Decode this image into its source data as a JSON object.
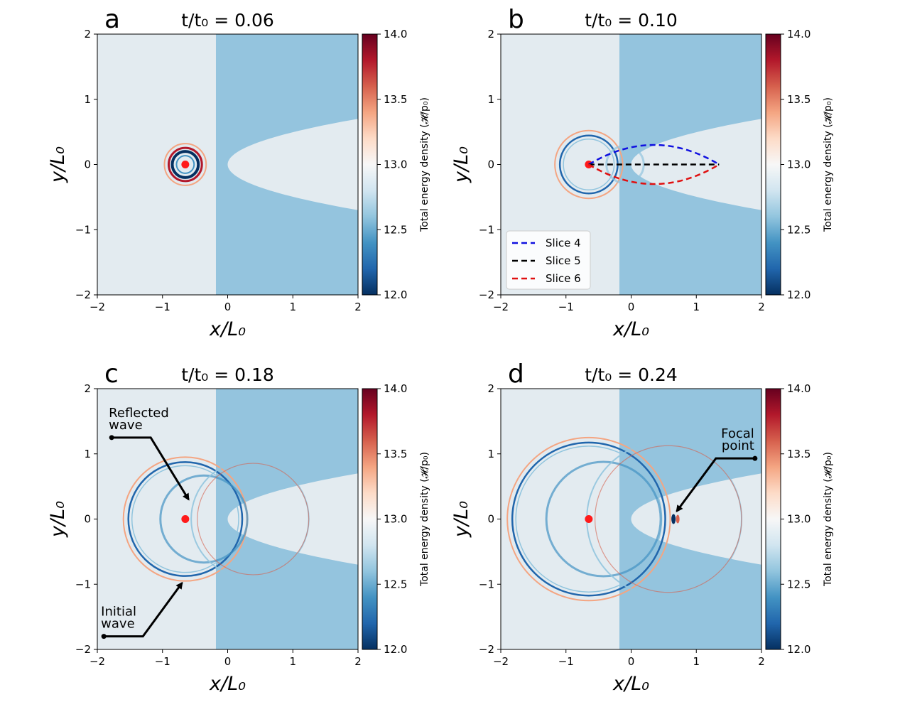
{
  "colors": {
    "light_medium": "#e3ebf0",
    "dense_medium": "#94c4de",
    "source": "#ff1a1a",
    "slice4": "#1010e0",
    "slice5": "#000000",
    "slice6": "#e01010",
    "colormap": [
      "#053061",
      "#2166ac",
      "#4393c3",
      "#92c5de",
      "#d1e5f0",
      "#f7f7f7",
      "#fddbc7",
      "#f4a582",
      "#d6604d",
      "#b2182b",
      "#67001f"
    ]
  },
  "axes": {
    "xlabel": "x/L₀",
    "ylabel": "y/L₀",
    "xlim": [
      -2,
      2
    ],
    "ylim": [
      -2,
      2
    ],
    "x_ticks": [
      "−2",
      "−1",
      "0",
      "1",
      "2"
    ],
    "y_ticks": [
      "−2",
      "−1",
      "0",
      "1",
      "2"
    ]
  },
  "colorbar": {
    "label": "Total energy density (𝓗/p₀)",
    "range": [
      12.0,
      14.0
    ],
    "ticks": [
      "12.0",
      "12.5",
      "13.0",
      "13.5",
      "14.0"
    ]
  },
  "chart_data": [
    {
      "type": "heatmap",
      "panel": "a",
      "title": "t/t₀ = 0.06",
      "source_position": [
        -0.65,
        0
      ],
      "interface_x": -0.18,
      "wavefront_radius": 0.32
    },
    {
      "type": "heatmap",
      "panel": "b",
      "title": "t/t₀ = 0.10",
      "source_position": [
        -0.65,
        0
      ],
      "interface_x": -0.18,
      "wavefront_radius": 0.52,
      "slices": [
        {
          "name": "Slice 4",
          "x": [
            -0.65,
            0.35,
            1.35
          ],
          "y": [
            0,
            0.3,
            0
          ]
        },
        {
          "name": "Slice 5",
          "x": [
            -0.65,
            0.35,
            1.35
          ],
          "y": [
            0,
            0,
            0
          ]
        },
        {
          "name": "Slice 6",
          "x": [
            -0.65,
            0.35,
            1.35
          ],
          "y": [
            0,
            -0.3,
            0
          ]
        }
      ]
    },
    {
      "type": "heatmap",
      "panel": "c",
      "title": "t/t₀ = 0.18",
      "source_position": [
        -0.65,
        0
      ],
      "interface_x": -0.18,
      "wavefront_radius": 0.95,
      "annotations": [
        {
          "text_lines": [
            "Reflected",
            "wave"
          ],
          "from": [
            -1.78,
            1.25
          ],
          "to": [
            -0.6,
            0.3
          ]
        },
        {
          "text_lines": [
            "Initial",
            "wave"
          ],
          "from": [
            -1.9,
            -1.8
          ],
          "to": [
            -0.7,
            -0.98
          ]
        }
      ]
    },
    {
      "type": "heatmap",
      "panel": "d",
      "title": "t/t₀ = 0.24",
      "source_position": [
        -0.65,
        0
      ],
      "interface_x": -0.18,
      "wavefront_radius": 1.25,
      "focal_point": [
        0.65,
        0
      ],
      "annotations": [
        {
          "text_lines": [
            "Focal",
            "point"
          ],
          "from": [
            1.9,
            0.93
          ],
          "to": [
            0.7,
            0.12
          ]
        }
      ]
    }
  ]
}
